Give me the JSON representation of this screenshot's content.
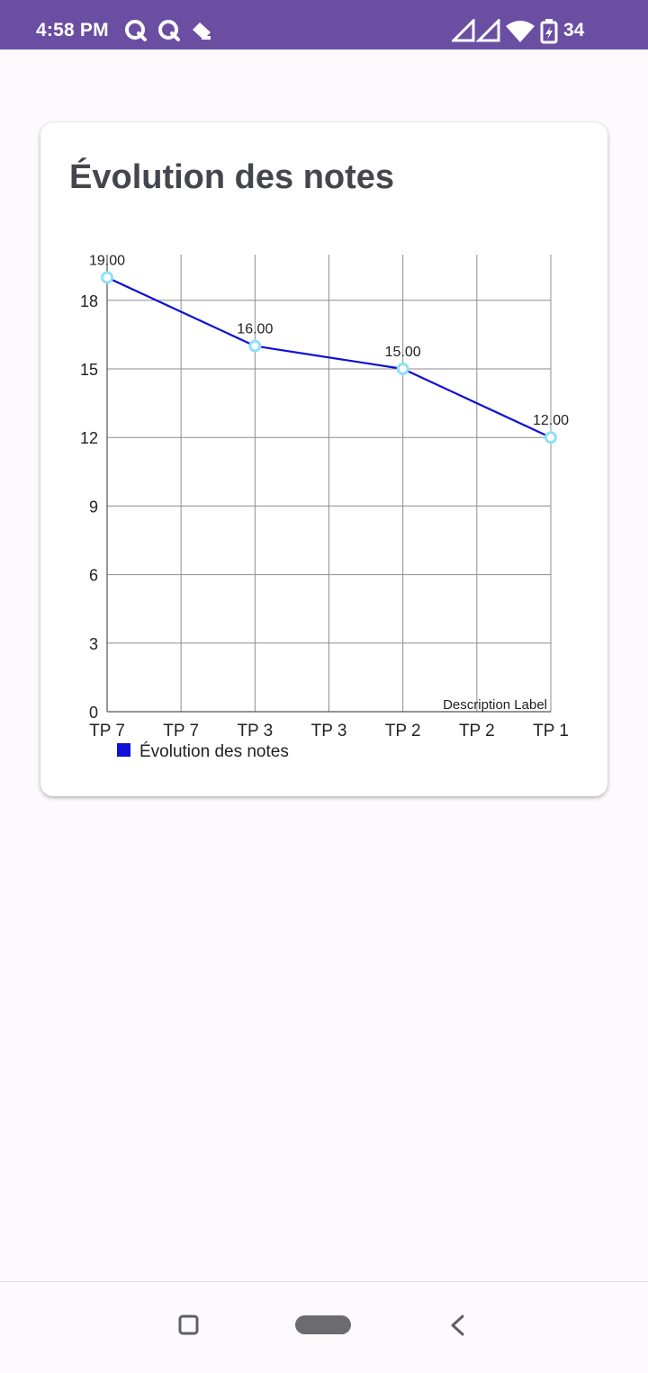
{
  "status_bar": {
    "time": "4:58 PM",
    "battery_level": "34",
    "color": "#6a4ea1",
    "left_icons": [
      "q-app-icon",
      "q-app-icon",
      "drive-icon"
    ],
    "right_icons": [
      "signal-icon",
      "signal-icon",
      "wifi-icon",
      "battery-charging-icon"
    ]
  },
  "card": {
    "title": "Évolution des notes"
  },
  "chart_data": {
    "type": "line",
    "categories": [
      "TP 7",
      "TP 7",
      "TP 3",
      "TP 3",
      "TP 2",
      "TP 2",
      "TP 1"
    ],
    "series": [
      {
        "name": "Évolution des notes",
        "color": "#1010d6",
        "marker_color": "#8ee0f8",
        "x": [
          0,
          2,
          4,
          6
        ],
        "values": [
          19,
          16,
          15,
          12
        ],
        "labels": [
          "19.00",
          "16.00",
          "15.00",
          "12.00"
        ]
      }
    ],
    "y_ticks": [
      "0",
      "3",
      "6",
      "9",
      "12",
      "15",
      "18"
    ],
    "ylim": [
      0,
      20
    ],
    "grid": true,
    "legend": "bottom-left",
    "description": "Description Label"
  },
  "nav_bar": {
    "buttons": [
      "recents-button",
      "home-button",
      "back-button"
    ]
  }
}
